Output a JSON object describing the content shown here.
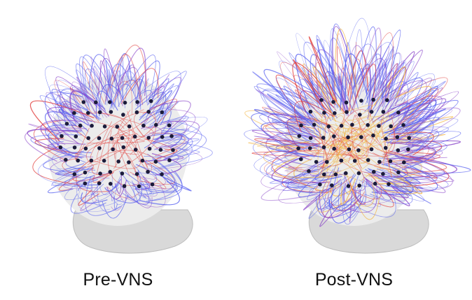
{
  "panels": [
    {
      "id": "pre",
      "caption": "Pre-VNS"
    },
    {
      "id": "post",
      "caption": "Post-VNS"
    }
  ],
  "colors": {
    "background": "#ffffff",
    "head": "#d9d9d9",
    "connection_weak": "#5a63f0",
    "connection_mid": "#8a45c9",
    "connection_strong": "#e2413e",
    "connection_strongest": "#f3b23a",
    "electrode": "#1b1b3a"
  },
  "icons": {
    "head_model": "3d-head-model",
    "electrode": "electrode-dot"
  }
}
